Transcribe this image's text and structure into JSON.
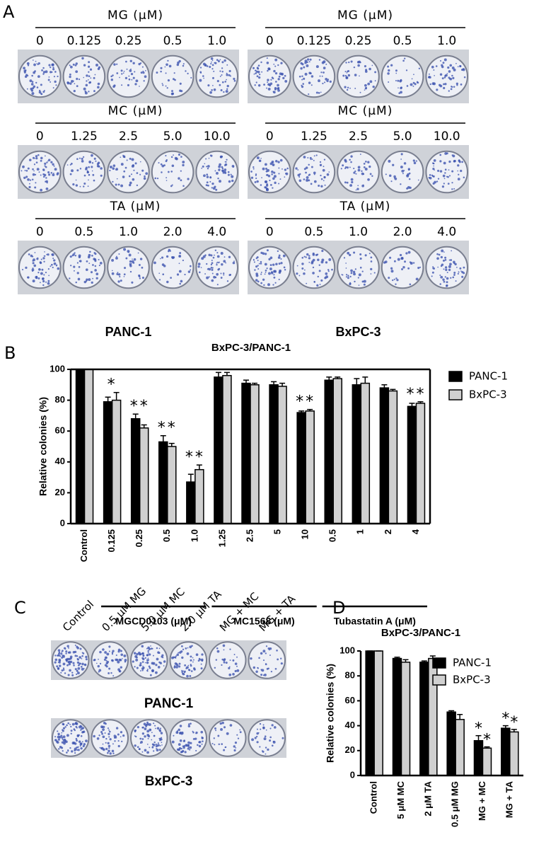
{
  "panel_a": {
    "label": "A",
    "columns": [
      {
        "cell_line": "PANC-1",
        "rows": [
          {
            "header": "MG (μM)",
            "concentrations": [
              "0",
              "0.125",
              "0.25",
              "0.5",
              "1.0"
            ]
          },
          {
            "header": "MC (μM)",
            "concentrations": [
              "0",
              "1.25",
              "2.5",
              "5.0",
              "10.0"
            ]
          },
          {
            "header": "TA (μM)",
            "concentrations": [
              "0",
              "0.5",
              "1.0",
              "2.0",
              "4.0"
            ]
          }
        ]
      },
      {
        "cell_line": "BxPC-3",
        "rows": [
          {
            "header": "MG (μM)",
            "concentrations": [
              "0",
              "0.125",
              "0.25",
              "0.5",
              "1.0"
            ]
          },
          {
            "header": "MC (μM)",
            "concentrations": [
              "0",
              "1.25",
              "2.5",
              "5.0",
              "10.0"
            ]
          },
          {
            "header": "TA (μM)",
            "concentrations": [
              "0",
              "0.5",
              "1.0",
              "2.0",
              "4.0"
            ]
          }
        ]
      }
    ]
  },
  "panel_c": {
    "label": "C",
    "conditions": [
      "Control",
      "0.5 μM MG",
      "5.0 μM MC",
      "2.0 μM TA",
      "MG + MC",
      "MG + TA"
    ],
    "rows": [
      "PANC-1",
      "BxPC-3"
    ]
  },
  "chart_data": [
    {
      "type": "bar",
      "panel_label": "B",
      "title": "BxPC-3/PANC-1",
      "y_label": "Relative colonies (%)",
      "categories": [
        "Control",
        "0.125",
        "0.25",
        "0.5",
        "1.0",
        "1.25",
        "2.5",
        "5",
        "10",
        "0.5",
        "1",
        "2",
        "4"
      ],
      "groups": [
        {
          "label": "MGCD0103 (μM)",
          "start": 1,
          "end": 4
        },
        {
          "label": "MC1568 (μM)",
          "start": 5,
          "end": 8
        },
        {
          "label": "Tubastatin A (μM)",
          "start": 9,
          "end": 12
        }
      ],
      "series": [
        {
          "name": "PANC-1",
          "color": "#000000",
          "values": [
            100,
            79,
            68,
            53,
            27,
            95,
            91,
            90,
            72,
            93,
            90,
            88,
            76
          ],
          "errors": [
            0,
            3,
            3,
            4,
            5,
            3,
            2,
            2,
            1,
            2,
            4,
            2,
            2
          ]
        },
        {
          "name": "BxPC-3",
          "color": "#d0d0d0",
          "values": [
            100,
            80,
            62,
            50,
            35,
            96,
            90,
            89,
            73,
            94,
            91,
            86,
            78
          ],
          "errors": [
            0,
            5,
            2,
            2,
            3,
            2,
            1,
            2,
            1,
            1,
            4,
            1,
            1
          ]
        }
      ],
      "significance": [
        null,
        "*",
        "**",
        "**",
        "**",
        null,
        null,
        null,
        "**",
        null,
        null,
        null,
        "**"
      ],
      "ylim": [
        0,
        100
      ],
      "yticks": [
        0,
        20,
        40,
        60,
        80,
        100
      ],
      "legend": "outside-right"
    },
    {
      "type": "bar",
      "panel_label": "D",
      "title": "BxPC-3/PANC-1",
      "y_label": "Relative colonies (%)",
      "categories": [
        "Control",
        "5 μM MC",
        "2 μM TA",
        "0.5 μM MG",
        "MG + MC",
        "MG + TA"
      ],
      "series": [
        {
          "name": "PANC-1",
          "color": "#000000",
          "values": [
            100,
            94,
            91,
            51,
            28,
            38
          ],
          "errors": [
            0,
            1,
            1,
            1,
            4,
            2
          ],
          "significance": [
            null,
            null,
            null,
            null,
            "*",
            "*"
          ]
        },
        {
          "name": "BxPC-3",
          "color": "#d0d0d0",
          "values": [
            100,
            91,
            94,
            45,
            22,
            35
          ],
          "errors": [
            0,
            2,
            2,
            4,
            1,
            2
          ],
          "significance": [
            null,
            null,
            null,
            null,
            "*",
            "*"
          ]
        }
      ],
      "ylim": [
        0,
        100
      ],
      "yticks": [
        0,
        20,
        40,
        60,
        80,
        100
      ],
      "legend": "upper-right"
    }
  ]
}
